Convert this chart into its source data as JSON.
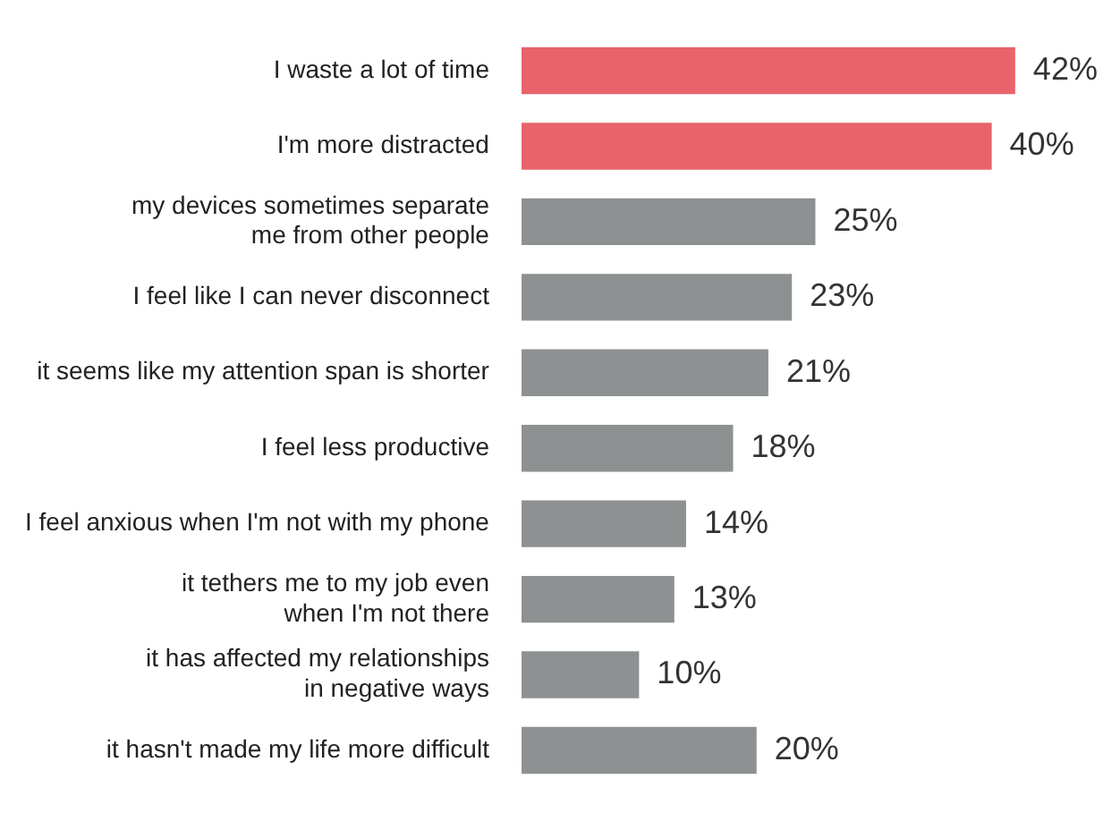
{
  "chart_data": {
    "type": "bar",
    "orientation": "horizontal",
    "categories": [
      "I waste a lot of time",
      "I'm more distracted",
      "my devices sometimes separate\nme from other people",
      "I feel like I can never disconnect",
      "it seems like my attention span is shorter",
      "I feel less productive",
      "I feel anxious when I'm not with my phone",
      "it tethers me to my job even\nwhen I'm not there",
      "it has affected my relationships\nin negative ways",
      "it hasn't made my life more difficult"
    ],
    "values": [
      42,
      40,
      25,
      23,
      21,
      18,
      14,
      13,
      10,
      20
    ],
    "colors": [
      "#e8636b",
      "#e8636b",
      "#8d9191",
      "#8d9191",
      "#8d9191",
      "#8d9191",
      "#8d9191",
      "#8d9191",
      "#8d9191",
      "#8d9191"
    ],
    "value_labels": [
      "42%",
      "40%",
      "25%",
      "23%",
      "21%",
      "18%",
      "14%",
      "13%",
      "10%",
      "20%"
    ],
    "tick_labels": "y"
  }
}
